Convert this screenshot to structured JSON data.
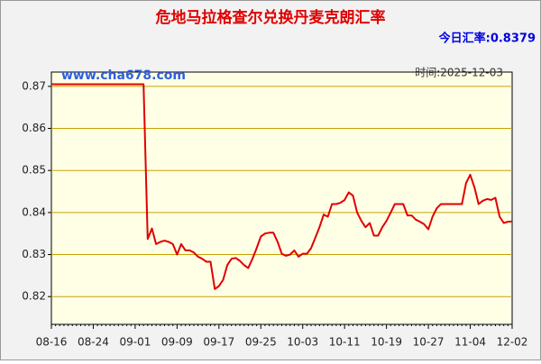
{
  "chart_data": {
    "type": "line",
    "title": "危地马拉格查尔兑换丹麦克朗汇率",
    "subtitle": "今日汇率:0.8379",
    "watermark": "www.cha678.com",
    "annotation": "时间:2025-12-03",
    "categories": [
      "08-16",
      null,
      null,
      null,
      null,
      null,
      null,
      null,
      null,
      null,
      "08-24",
      null,
      null,
      null,
      null,
      null,
      null,
      null,
      null,
      null,
      "09-01",
      null,
      null,
      null,
      null,
      null,
      null,
      null,
      null,
      null,
      "09-09",
      null,
      null,
      null,
      null,
      null,
      null,
      null,
      null,
      null,
      "09-17",
      null,
      null,
      null,
      null,
      null,
      null,
      null,
      null,
      null,
      "09-25",
      null,
      null,
      null,
      null,
      null,
      null,
      null,
      null,
      null,
      "10-03",
      null,
      null,
      null,
      null,
      null,
      null,
      null,
      null,
      null,
      "10-11",
      null,
      null,
      null,
      null,
      null,
      null,
      null,
      null,
      null,
      "10-19",
      null,
      null,
      null,
      null,
      null,
      null,
      null,
      null,
      null,
      "10-27",
      null,
      null,
      null,
      null,
      null,
      null,
      null,
      null,
      null,
      "11-04",
      null,
      null,
      null,
      null,
      null,
      null,
      null,
      null,
      null,
      "12-02"
    ],
    "series": [
      {
        "color": "#e00000",
        "values": [
          0.8705,
          0.8705,
          0.8705,
          0.8705,
          0.8705,
          0.8705,
          0.8705,
          0.8705,
          0.8705,
          0.8705,
          0.8705,
          0.8705,
          0.8705,
          0.8705,
          0.8705,
          0.8705,
          0.8705,
          0.8705,
          0.8705,
          0.8705,
          0.8705,
          0.8705,
          0.8705,
          0.8337,
          0.8362,
          0.8325,
          0.833,
          0.8333,
          0.833,
          0.8325,
          0.83,
          0.8325,
          0.831,
          0.831,
          0.8305,
          0.8295,
          0.829,
          0.8283,
          0.8283,
          0.8218,
          0.8225,
          0.824,
          0.8275,
          0.829,
          0.8292,
          0.8285,
          0.8275,
          0.8268,
          0.829,
          0.8315,
          0.8343,
          0.835,
          0.8352,
          0.8352,
          0.833,
          0.8302,
          0.8297,
          0.83,
          0.831,
          0.8295,
          0.8302,
          0.8302,
          0.8315,
          0.834,
          0.8365,
          0.8395,
          0.839,
          0.842,
          0.842,
          0.8423,
          0.843,
          0.8448,
          0.844,
          0.84,
          0.838,
          0.8365,
          0.8375,
          0.8345,
          0.8345,
          0.8365,
          0.838,
          0.84,
          0.842,
          0.842,
          0.842,
          0.8393,
          0.8393,
          0.8383,
          0.8378,
          0.8372,
          0.836,
          0.839,
          0.841,
          0.842,
          0.842,
          0.842,
          0.842,
          0.842,
          0.842,
          0.847,
          0.849,
          0.846,
          0.842,
          0.8428,
          0.8432,
          0.843,
          0.8435,
          0.839,
          0.8375,
          0.8378,
          0.8379
        ]
      }
    ],
    "ylim": [
      0.8134,
      0.8734
    ],
    "yticks": [
      0.82,
      0.83,
      0.84,
      0.85,
      0.86,
      0.87
    ],
    "grid": true
  }
}
